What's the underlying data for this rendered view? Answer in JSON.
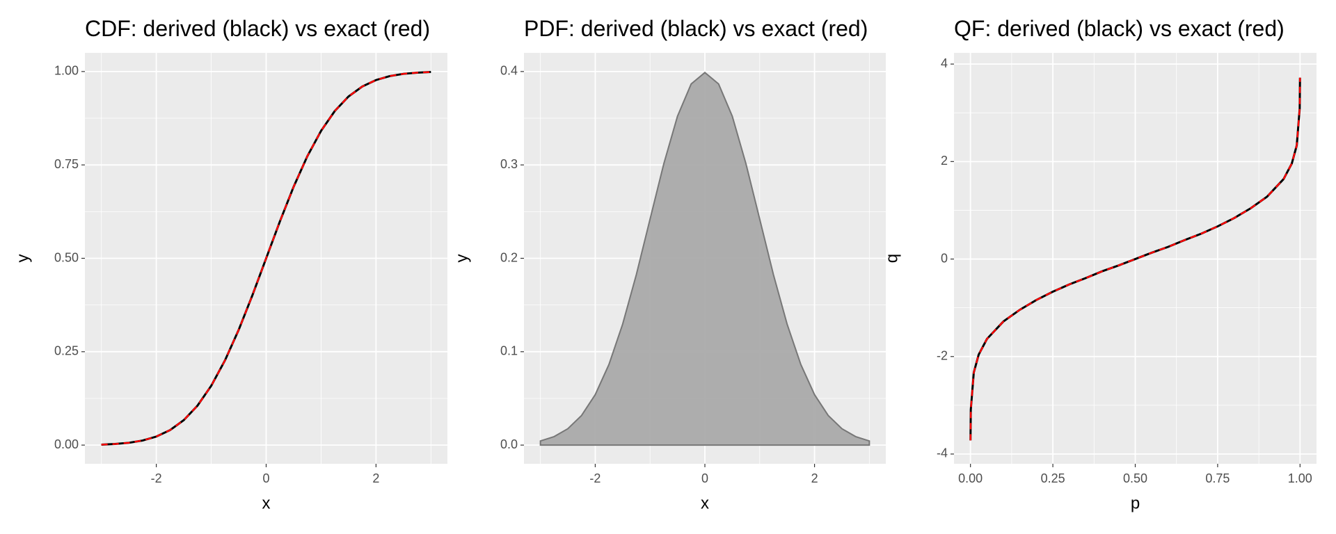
{
  "chart_data": [
    {
      "type": "line",
      "title": "CDF: derived (black) vs exact (red)",
      "x_label": "x",
      "y_label": "y",
      "x": [
        -3,
        -2.75,
        -2.5,
        -2.25,
        -2,
        -1.75,
        -1.5,
        -1.25,
        -1,
        -0.75,
        -0.5,
        -0.25,
        0,
        0.25,
        0.5,
        0.75,
        1,
        1.25,
        1.5,
        1.75,
        2,
        2.25,
        2.5,
        2.75,
        3
      ],
      "series": [
        {
          "color": "#000000",
          "values": [
            0.0013,
            0.003,
            0.0062,
            0.0122,
            0.0228,
            0.0401,
            0.0668,
            0.1056,
            0.1587,
            0.2266,
            0.3085,
            0.4013,
            0.5,
            0.5987,
            0.6915,
            0.7734,
            0.8413,
            0.8944,
            0.9332,
            0.9599,
            0.9772,
            0.9878,
            0.9938,
            0.997,
            0.9987
          ]
        },
        {
          "color": "#ff0000",
          "dashed": true,
          "values": [
            0.0013,
            0.003,
            0.0062,
            0.0122,
            0.0228,
            0.0401,
            0.0668,
            0.1056,
            0.1587,
            0.2266,
            0.3085,
            0.4013,
            0.5,
            0.5987,
            0.6915,
            0.7734,
            0.8413,
            0.8944,
            0.9332,
            0.9599,
            0.9772,
            0.9878,
            0.9938,
            0.997,
            0.9987
          ]
        }
      ],
      "xlim": [
        -3.3,
        3.3
      ],
      "xticks": [
        -2,
        0,
        2
      ],
      "ylim": [
        -0.05,
        1.05
      ],
      "yticks": [
        {
          "value": 0,
          "label": "0.00"
        },
        0.25,
        {
          "value": 0.5,
          "label": "0.50"
        },
        0.75,
        {
          "value": 1,
          "label": "1.00"
        }
      ],
      "grid": true
    },
    {
      "type": "area",
      "title": "PDF: derived (black) vs exact (red)",
      "x_label": "x",
      "y_label": "y",
      "x": [
        -3,
        -2.75,
        -2.5,
        -2.25,
        -2,
        -1.75,
        -1.5,
        -1.25,
        -1,
        -0.75,
        -0.5,
        -0.25,
        0,
        0.25,
        0.5,
        0.75,
        1,
        1.25,
        1.5,
        1.75,
        2,
        2.25,
        2.5,
        2.75,
        3
      ],
      "values": [
        0.0044,
        0.0091,
        0.0175,
        0.0317,
        0.054,
        0.0863,
        0.1295,
        0.1826,
        0.242,
        0.3011,
        0.3521,
        0.3867,
        0.3989,
        0.3867,
        0.3521,
        0.3011,
        0.242,
        0.1826,
        0.1295,
        0.0863,
        0.054,
        0.0317,
        0.0175,
        0.0091,
        0.0044
      ],
      "color": "#aaaaaa",
      "xlim": [
        -3.3,
        3.3
      ],
      "xticks": [
        -2,
        0,
        2
      ],
      "ylim": [
        -0.02,
        0.42
      ],
      "yticks": [
        {
          "value": 0,
          "label": "0.0"
        },
        0.1,
        0.2,
        0.3,
        0.4
      ],
      "grid": true
    },
    {
      "type": "line",
      "title": "QF: derived (black) vs exact (red)",
      "x_label": "p",
      "y_label": "q",
      "x": [
        0.0001,
        0.001,
        0.01,
        0.025,
        0.05,
        0.1,
        0.15,
        0.2,
        0.25,
        0.3,
        0.35,
        0.4,
        0.45,
        0.5,
        0.55,
        0.6,
        0.65,
        0.7,
        0.75,
        0.8,
        0.85,
        0.9,
        0.95,
        0.975,
        0.99,
        0.999,
        0.9999
      ],
      "series": [
        {
          "color": "#000000",
          "values": [
            -3.72,
            -3.09,
            -2.33,
            -1.96,
            -1.64,
            -1.28,
            -1.04,
            -0.84,
            -0.67,
            -0.52,
            -0.39,
            -0.25,
            -0.13,
            0,
            0.13,
            0.25,
            0.39,
            0.52,
            0.67,
            0.84,
            1.04,
            1.28,
            1.64,
            1.96,
            2.33,
            3.09,
            3.72
          ]
        },
        {
          "color": "#ff0000",
          "dashed": true,
          "values": [
            -3.72,
            -3.09,
            -2.33,
            -1.96,
            -1.64,
            -1.28,
            -1.04,
            -0.84,
            -0.67,
            -0.52,
            -0.39,
            -0.25,
            -0.13,
            0,
            0.13,
            0.25,
            0.39,
            0.52,
            0.67,
            0.84,
            1.04,
            1.28,
            1.64,
            1.96,
            2.33,
            3.09,
            3.72
          ]
        }
      ],
      "xlim": [
        -0.05,
        1.05
      ],
      "xticks": [
        {
          "value": 0,
          "label": "0.00"
        },
        0.25,
        {
          "value": 0.5,
          "label": "0.50"
        },
        0.75,
        {
          "value": 1,
          "label": "1.00"
        }
      ],
      "ylim": [
        -4.2,
        4.23
      ],
      "yticks": [
        -4,
        -2,
        0,
        2,
        4
      ],
      "grid": true
    }
  ]
}
